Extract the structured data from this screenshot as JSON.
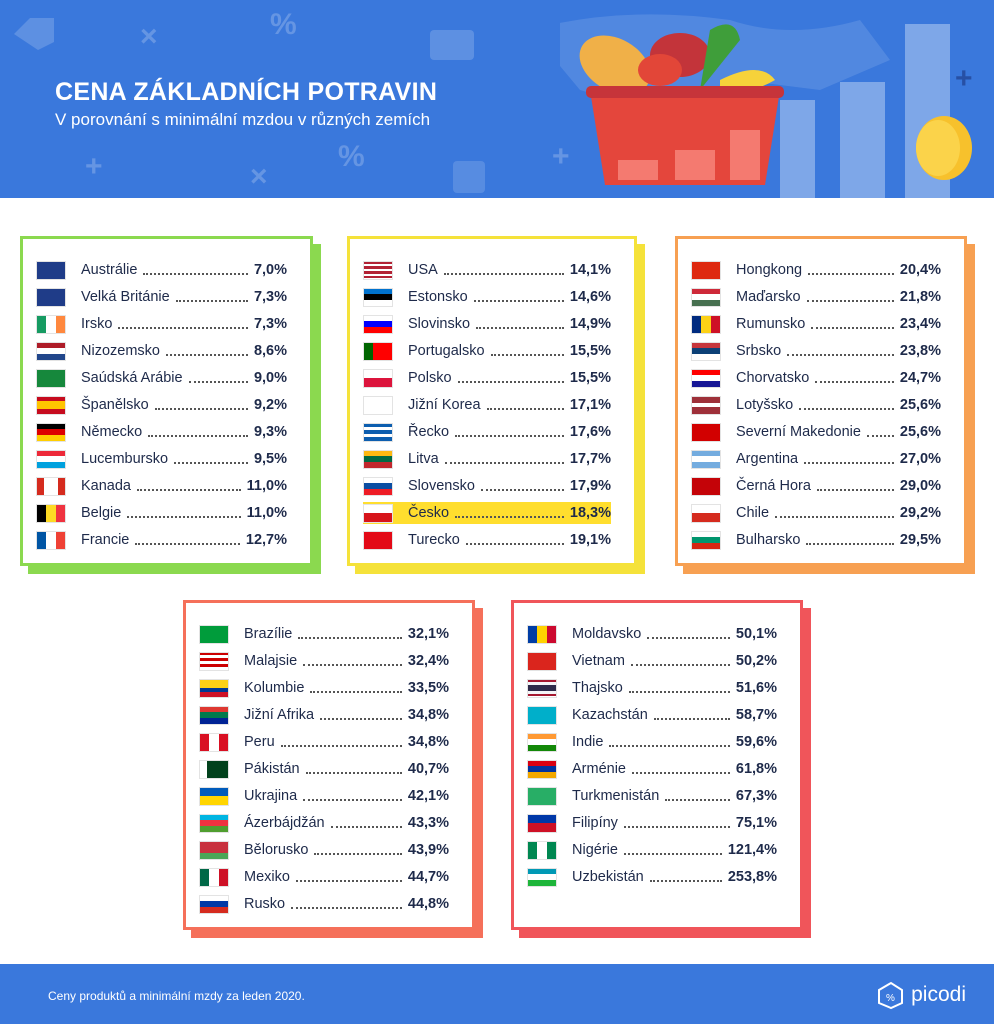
{
  "header": {
    "title": "CENA ZÁKLADNÍCH POTRAVIN",
    "subtitle": "V porovnání s minimální mzdou v různých zemích"
  },
  "footer": {
    "note": "Ceny produktů a minimální mzdy za leden 2020.",
    "brand": "picodi"
  },
  "colors": {
    "header_bg": "#3a78dc",
    "group1": "#8bd94f",
    "group2": "#f5e23a",
    "group3": "#f7a052",
    "group4": "#f5705a",
    "group5": "#f0555a",
    "highlight": "#ffde2e"
  },
  "chart_data": {
    "type": "table",
    "unit": "%",
    "highlight": "Česko",
    "groups": [
      {
        "rows": [
          {
            "country": "Austrálie",
            "value": "7,0%",
            "flag": "australia"
          },
          {
            "country": "Velká Británie",
            "value": "7,3%",
            "flag": "uk"
          },
          {
            "country": "Irsko",
            "value": "7,3%",
            "flag": "ireland"
          },
          {
            "country": "Nizozemsko",
            "value": "8,6%",
            "flag": "netherlands"
          },
          {
            "country": "Saúdská Arábie",
            "value": "9,0%",
            "flag": "saudi"
          },
          {
            "country": "Španělsko",
            "value": "9,2%",
            "flag": "spain"
          },
          {
            "country": "Německo",
            "value": "9,3%",
            "flag": "germany"
          },
          {
            "country": "Lucembursko",
            "value": "9,5%",
            "flag": "luxembourg"
          },
          {
            "country": "Kanada",
            "value": "11,0%",
            "flag": "canada"
          },
          {
            "country": "Belgie",
            "value": "11,0%",
            "flag": "belgium"
          },
          {
            "country": "Francie",
            "value": "12,7%",
            "flag": "france"
          }
        ]
      },
      {
        "rows": [
          {
            "country": "USA",
            "value": "14,1%",
            "flag": "usa"
          },
          {
            "country": "Estonsko",
            "value": "14,6%",
            "flag": "estonia"
          },
          {
            "country": "Slovinsko",
            "value": "14,9%",
            "flag": "slovenia"
          },
          {
            "country": "Portugalsko",
            "value": "15,5%",
            "flag": "portugal"
          },
          {
            "country": "Polsko",
            "value": "15,5%",
            "flag": "poland"
          },
          {
            "country": "Jižní Korea",
            "value": "17,1%",
            "flag": "korea"
          },
          {
            "country": "Řecko",
            "value": "17,6%",
            "flag": "greece"
          },
          {
            "country": "Litva",
            "value": "17,7%",
            "flag": "lithuania"
          },
          {
            "country": "Slovensko",
            "value": "17,9%",
            "flag": "slovakia"
          },
          {
            "country": "Česko",
            "value": "18,3%",
            "flag": "czech"
          },
          {
            "country": "Turecko",
            "value": "19,1%",
            "flag": "turkey"
          }
        ]
      },
      {
        "rows": [
          {
            "country": "Hongkong",
            "value": "20,4%",
            "flag": "hongkong"
          },
          {
            "country": "Maďarsko",
            "value": "21,8%",
            "flag": "hungary"
          },
          {
            "country": "Rumunsko",
            "value": "23,4%",
            "flag": "romania"
          },
          {
            "country": "Srbsko",
            "value": "23,8%",
            "flag": "serbia"
          },
          {
            "country": "Chorvatsko",
            "value": "24,7%",
            "flag": "croatia"
          },
          {
            "country": "Lotyšsko",
            "value": "25,6%",
            "flag": "latvia"
          },
          {
            "country": "Severní Makedonie",
            "value": "25,6%",
            "flag": "macedonia"
          },
          {
            "country": "Argentina",
            "value": "27,0%",
            "flag": "argentina"
          },
          {
            "country": "Černá Hora",
            "value": "29,0%",
            "flag": "montenegro"
          },
          {
            "country": "Chile",
            "value": "29,2%",
            "flag": "chile"
          },
          {
            "country": "Bulharsko",
            "value": "29,5%",
            "flag": "bulgaria"
          }
        ]
      },
      {
        "rows": [
          {
            "country": "Brazílie",
            "value": "32,1%",
            "flag": "brazil"
          },
          {
            "country": "Malajsie",
            "value": "32,4%",
            "flag": "malaysia"
          },
          {
            "country": "Kolumbie",
            "value": "33,5%",
            "flag": "colombia"
          },
          {
            "country": "Jižní Afrika",
            "value": "34,8%",
            "flag": "southafrica"
          },
          {
            "country": "Peru",
            "value": "34,8%",
            "flag": "peru"
          },
          {
            "country": "Pákistán",
            "value": "40,7%",
            "flag": "pakistan"
          },
          {
            "country": "Ukrajina",
            "value": "42,1%",
            "flag": "ukraine"
          },
          {
            "country": "Ázerbájdžán",
            "value": "43,3%",
            "flag": "azerbaijan"
          },
          {
            "country": "Bělorusko",
            "value": "43,9%",
            "flag": "belarus"
          },
          {
            "country": "Mexiko",
            "value": "44,7%",
            "flag": "mexico"
          },
          {
            "country": "Rusko",
            "value": "44,8%",
            "flag": "russia"
          }
        ]
      },
      {
        "rows": [
          {
            "country": "Moldavsko",
            "value": "50,1%",
            "flag": "moldova"
          },
          {
            "country": "Vietnam",
            "value": "50,2%",
            "flag": "vietnam"
          },
          {
            "country": "Thajsko",
            "value": "51,6%",
            "flag": "thailand"
          },
          {
            "country": "Kazachstán",
            "value": "58,7%",
            "flag": "kazakhstan"
          },
          {
            "country": "Indie",
            "value": "59,6%",
            "flag": "india"
          },
          {
            "country": "Arménie",
            "value": "61,8%",
            "flag": "armenia"
          },
          {
            "country": "Turkmenistán",
            "value": "67,3%",
            "flag": "turkmenistan"
          },
          {
            "country": "Filipíny",
            "value": "75,1%",
            "flag": "philippines"
          },
          {
            "country": "Nigérie",
            "value": "121,4%",
            "flag": "nigeria"
          },
          {
            "country": "Uzbekistán",
            "value": "253,8%",
            "flag": "uzbekistan"
          }
        ]
      }
    ]
  }
}
